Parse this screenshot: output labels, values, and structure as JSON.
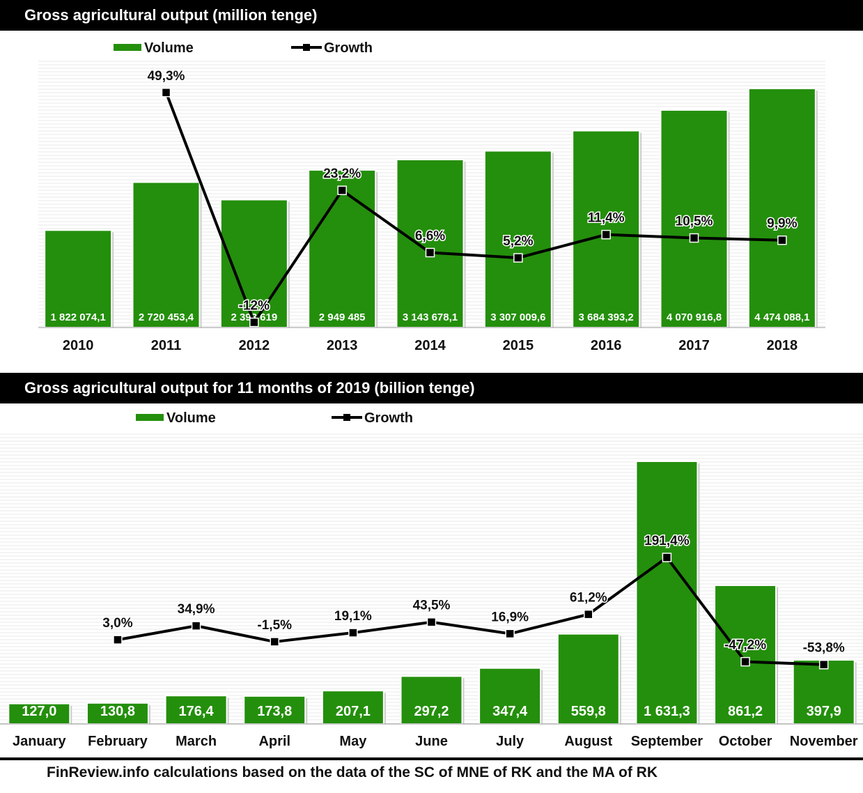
{
  "colors": {
    "bar": "#248f0c",
    "bar_edge": "#ffffff",
    "line": "#000000",
    "header_bg": "#000000",
    "header_text": "#ffffff",
    "grid": "#e8e8e8"
  },
  "chart_data": [
    {
      "type": "bar",
      "title": "Gross agricultural output (million tenge)",
      "legend": {
        "volume_label": "Volume",
        "growth_label": "Growth",
        "placement": "top-left"
      },
      "categories": [
        "2010",
        "2011",
        "2012",
        "2013",
        "2014",
        "2015",
        "2016",
        "2017",
        "2018"
      ],
      "series": [
        {
          "name": "Volume",
          "type": "bar",
          "values": [
            1822074.1,
            2720453.4,
            2393619,
            2949485,
            3143678.1,
            3307009.6,
            3684393.2,
            4070916.8,
            4474088.1
          ],
          "labels": [
            "1 822 074,1",
            "2 720 453,4",
            "2 393 619",
            "2 949 485",
            "3 143 678,1",
            "3 307 009,6",
            "3 684 393,2",
            "4 070 916,8",
            "4 474 088,1"
          ]
        },
        {
          "name": "Growth",
          "type": "line",
          "values": [
            null,
            49.3,
            -12,
            23.2,
            6.6,
            5.2,
            11.4,
            10.5,
            9.9
          ],
          "labels": [
            "",
            "49,3%",
            "-12%",
            "23,2%",
            "6,6%",
            "5,2%",
            "11,4%",
            "10,5%",
            "9,9%"
          ]
        }
      ],
      "grid": true
    },
    {
      "type": "bar",
      "title": "Gross agricultural output for 11 months of 2019 (billion tenge)",
      "legend": {
        "volume_label": "Volume",
        "growth_label": "Growth",
        "placement": "top-left"
      },
      "categories": [
        "January",
        "February",
        "March",
        "April",
        "May",
        "June",
        "July",
        "August",
        "September",
        "October",
        "November"
      ],
      "series": [
        {
          "name": "Volume",
          "type": "bar",
          "values": [
            127.0,
            130.8,
            176.4,
            173.8,
            207.1,
            297.2,
            347.4,
            559.8,
            1631.3,
            861.2,
            397.9
          ],
          "labels": [
            "127,0",
            "130,8",
            "176,4",
            "173,8",
            "207,1",
            "297,2",
            "347,4",
            "559,8",
            "1 631,3",
            "861,2",
            "397,9"
          ]
        },
        {
          "name": "Growth",
          "type": "line",
          "values": [
            null,
            3.0,
            34.9,
            -1.5,
            19.1,
            43.5,
            16.9,
            61.2,
            191.4,
            -47.2,
            -53.8
          ],
          "labels": [
            "",
            "3,0%",
            "34,9%",
            "-1,5%",
            "19,1%",
            "43,5%",
            "16,9%",
            "61,2%",
            "191,4%",
            "-47,2%",
            "-53,8%"
          ]
        }
      ],
      "grid": true
    }
  ],
  "footer": "FinReview.info calculations based on the data of the SC of MNE of RK and the MA of RK"
}
